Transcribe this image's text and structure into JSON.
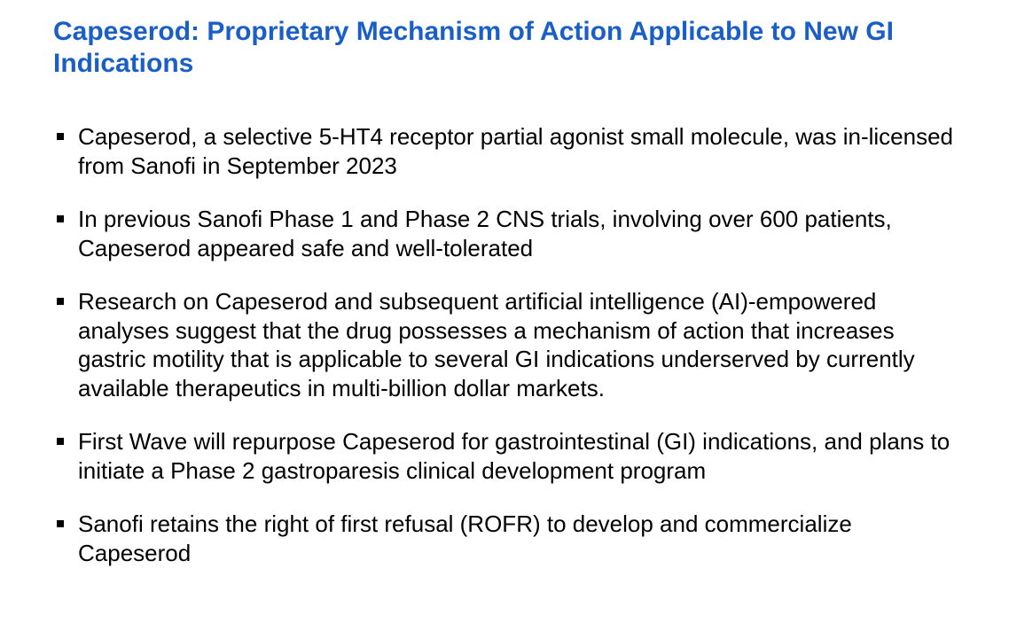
{
  "title_color": "#1a5fc7",
  "body_color": "#000000",
  "background_color": "#ffffff",
  "title_fontsize": 30,
  "body_fontsize": 26,
  "title": "Capeserod: Proprietary Mechanism of Action Applicable to New GI Indications",
  "bullets": [
    "Capeserod, a selective 5-HT4 receptor partial agonist small molecule, was in-licensed from Sanofi in September 2023",
    "In previous Sanofi Phase 1 and Phase 2 CNS trials, involving over 600 patients, Capeserod appeared safe and well-tolerated",
    "Research on Capeserod and subsequent artificial intelligence (AI)-empowered analyses suggest that the drug possesses a mechanism of action that increases gastric motility that is applicable to several GI indications underserved by currently available therapeutics in multi-billion dollar markets.",
    "First Wave will repurpose Capeserod for gastrointestinal (GI) indications, and plans to initiate a Phase 2 gastroparesis clinical development program",
    "Sanofi retains the right of first refusal (ROFR) to develop and commercialize Capeserod"
  ]
}
